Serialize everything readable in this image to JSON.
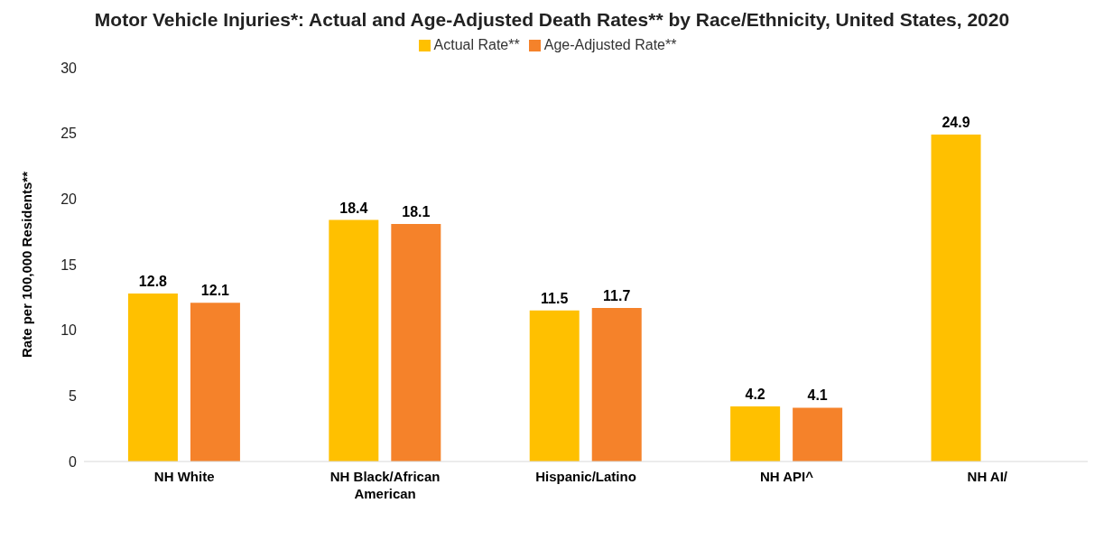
{
  "chart_data": {
    "type": "bar",
    "title": "Motor Vehicle Injuries*: Actual and Age-Adjusted Death Rates** by Race/Ethnicity, United States, 2020",
    "ylabel": "Rate per 100,000 Residents**",
    "categories": [
      "NH White",
      "NH Black/African American",
      "Hispanic/Latino",
      "NH API^",
      "NH AI/"
    ],
    "series": [
      {
        "name": "Actual Rate**",
        "color": "#ffc000",
        "values": [
          12.8,
          18.4,
          11.5,
          4.2,
          24.9
        ]
      },
      {
        "name": "Age-Adjusted Rate**",
        "color": "#f5822a",
        "values": [
          12.1,
          18.1,
          11.7,
          4.1,
          null
        ]
      }
    ],
    "ylim": [
      0,
      30
    ],
    "yticks": [
      0,
      5,
      10,
      15,
      20,
      25,
      30
    ],
    "legend": "top",
    "data_labels": true
  }
}
